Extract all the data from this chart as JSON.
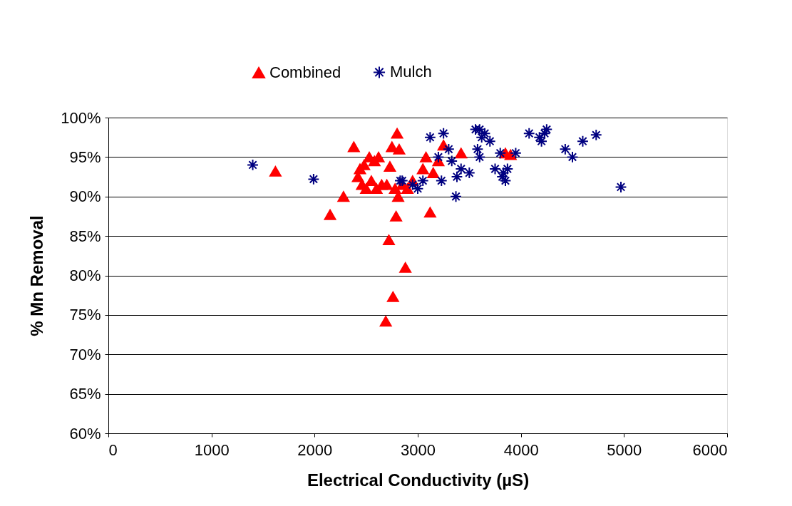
{
  "chart_data": {
    "type": "scatter",
    "xlabel": "Electrical Conductivity (µS)",
    "ylabel": "% Mn Removal",
    "xlim": [
      0,
      6000
    ],
    "xticks": [
      0,
      1000,
      2000,
      3000,
      4000,
      5000,
      6000
    ],
    "ylim": [
      60,
      100
    ],
    "yticks": [
      {
        "value": 60,
        "label": "60%"
      },
      {
        "value": 65,
        "label": "65%"
      },
      {
        "value": 70,
        "label": "70%"
      },
      {
        "value": 75,
        "label": "75%"
      },
      {
        "value": 80,
        "label": "80%"
      },
      {
        "value": 85,
        "label": "85%"
      },
      {
        "value": 90,
        "label": "90%"
      },
      {
        "value": 95,
        "label": "95%"
      },
      {
        "value": 100,
        "label": "100%"
      }
    ],
    "grid": "y",
    "legend": "top",
    "series": [
      {
        "name": "Combined",
        "color": "#ff0000",
        "marker": "triangle",
        "x": [
          1620,
          2150,
          2280,
          2380,
          2420,
          2440,
          2460,
          2480,
          2500,
          2530,
          2550,
          2580,
          2600,
          2620,
          2650,
          2690,
          2700,
          2720,
          2730,
          2750,
          2760,
          2780,
          2790,
          2800,
          2810,
          2820,
          2850,
          2880,
          2900,
          2950,
          3050,
          3080,
          3120,
          3150,
          3200,
          3250,
          3420,
          3850,
          3900
        ],
        "values": [
          93.2,
          87.7,
          90.0,
          96.3,
          92.5,
          93.5,
          91.5,
          94.0,
          91.0,
          95.0,
          92.0,
          94.5,
          91.0,
          95.0,
          91.5,
          74.2,
          91.5,
          84.5,
          93.8,
          96.3,
          77.3,
          91.0,
          87.5,
          98.0,
          90.0,
          96.0,
          91.5,
          81.0,
          91.0,
          92.0,
          93.5,
          95.0,
          88.0,
          93.0,
          94.5,
          96.5,
          95.5,
          95.5,
          95.3
        ]
      },
      {
        "name": "Mulch",
        "color": "#000080",
        "marker": "cross",
        "x": [
          1400,
          1990,
          2830,
          2850,
          2950,
          3000,
          3050,
          3120,
          3200,
          3230,
          3250,
          3300,
          3330,
          3370,
          3380,
          3420,
          3500,
          3560,
          3580,
          3600,
          3600,
          3620,
          3650,
          3700,
          3750,
          3800,
          3820,
          3830,
          3850,
          3870,
          3950,
          4080,
          4180,
          4200,
          4230,
          4250,
          4430,
          4500,
          4600,
          4730,
          4970
        ],
        "values": [
          94.0,
          92.2,
          92.0,
          92.0,
          91.5,
          91.0,
          92.0,
          97.5,
          95.0,
          92.0,
          98.0,
          96.0,
          94.5,
          90.0,
          92.5,
          93.5,
          93.0,
          98.5,
          96.0,
          95.0,
          98.5,
          97.5,
          98.0,
          97.0,
          93.5,
          95.5,
          92.5,
          93.0,
          92.0,
          93.5,
          95.5,
          98.0,
          97.5,
          97.0,
          98.0,
          98.5,
          96.0,
          95.0,
          97.0,
          97.8,
          91.2
        ]
      }
    ]
  }
}
